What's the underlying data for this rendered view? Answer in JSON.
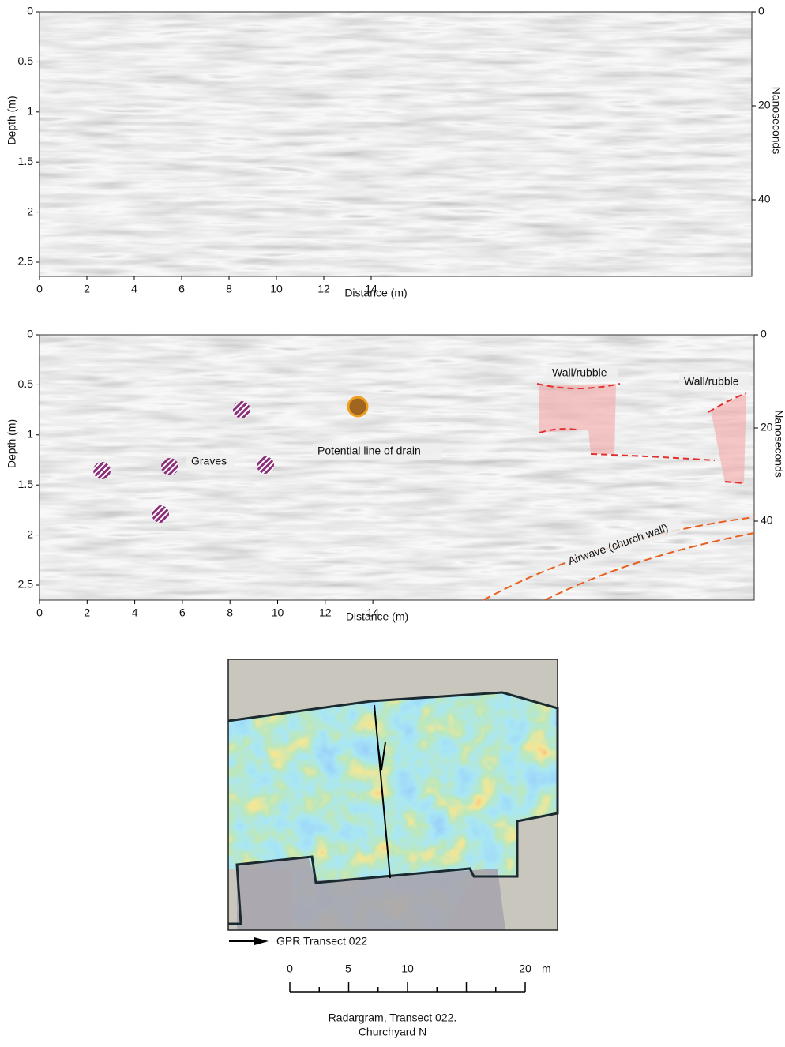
{
  "radargram_top": {
    "y_label": "Depth (m)",
    "y_ticks": [
      "0",
      "0.5",
      "1",
      "1.5",
      "2",
      "2.5"
    ],
    "y2_label": "Nanoseconds",
    "y2_ticks": [
      "0",
      "20",
      "40"
    ],
    "x_label": "Distance (m)",
    "x_ticks": [
      "0",
      "2",
      "4",
      "6",
      "8",
      "10",
      "12",
      "14"
    ]
  },
  "radargram_bottom": {
    "y_label": "Depth (m)",
    "y_ticks": [
      "0",
      "0.5",
      "1",
      "1.5",
      "2",
      "2.5"
    ],
    "y2_label": "Nanoseconds",
    "y2_ticks": [
      "0",
      "20",
      "40"
    ],
    "x_label": "Distance (m)",
    "x_ticks": [
      "0",
      "2",
      "4",
      "6",
      "8",
      "10",
      "12",
      "14"
    ],
    "annotations": {
      "graves": "Graves",
      "drain": "Potential line of drain",
      "wall_1": "Wall/rubble",
      "wall_2": "Wall/rubble",
      "airwave": "Airwave (church wall)"
    }
  },
  "map": {
    "legend": "GPR Transect 022",
    "scale_ticks": [
      "0",
      "5",
      "10",
      "20"
    ],
    "scale_unit": "m",
    "caption": [
      "Radargram, Transect 022.",
      "Churchyard N"
    ]
  }
}
